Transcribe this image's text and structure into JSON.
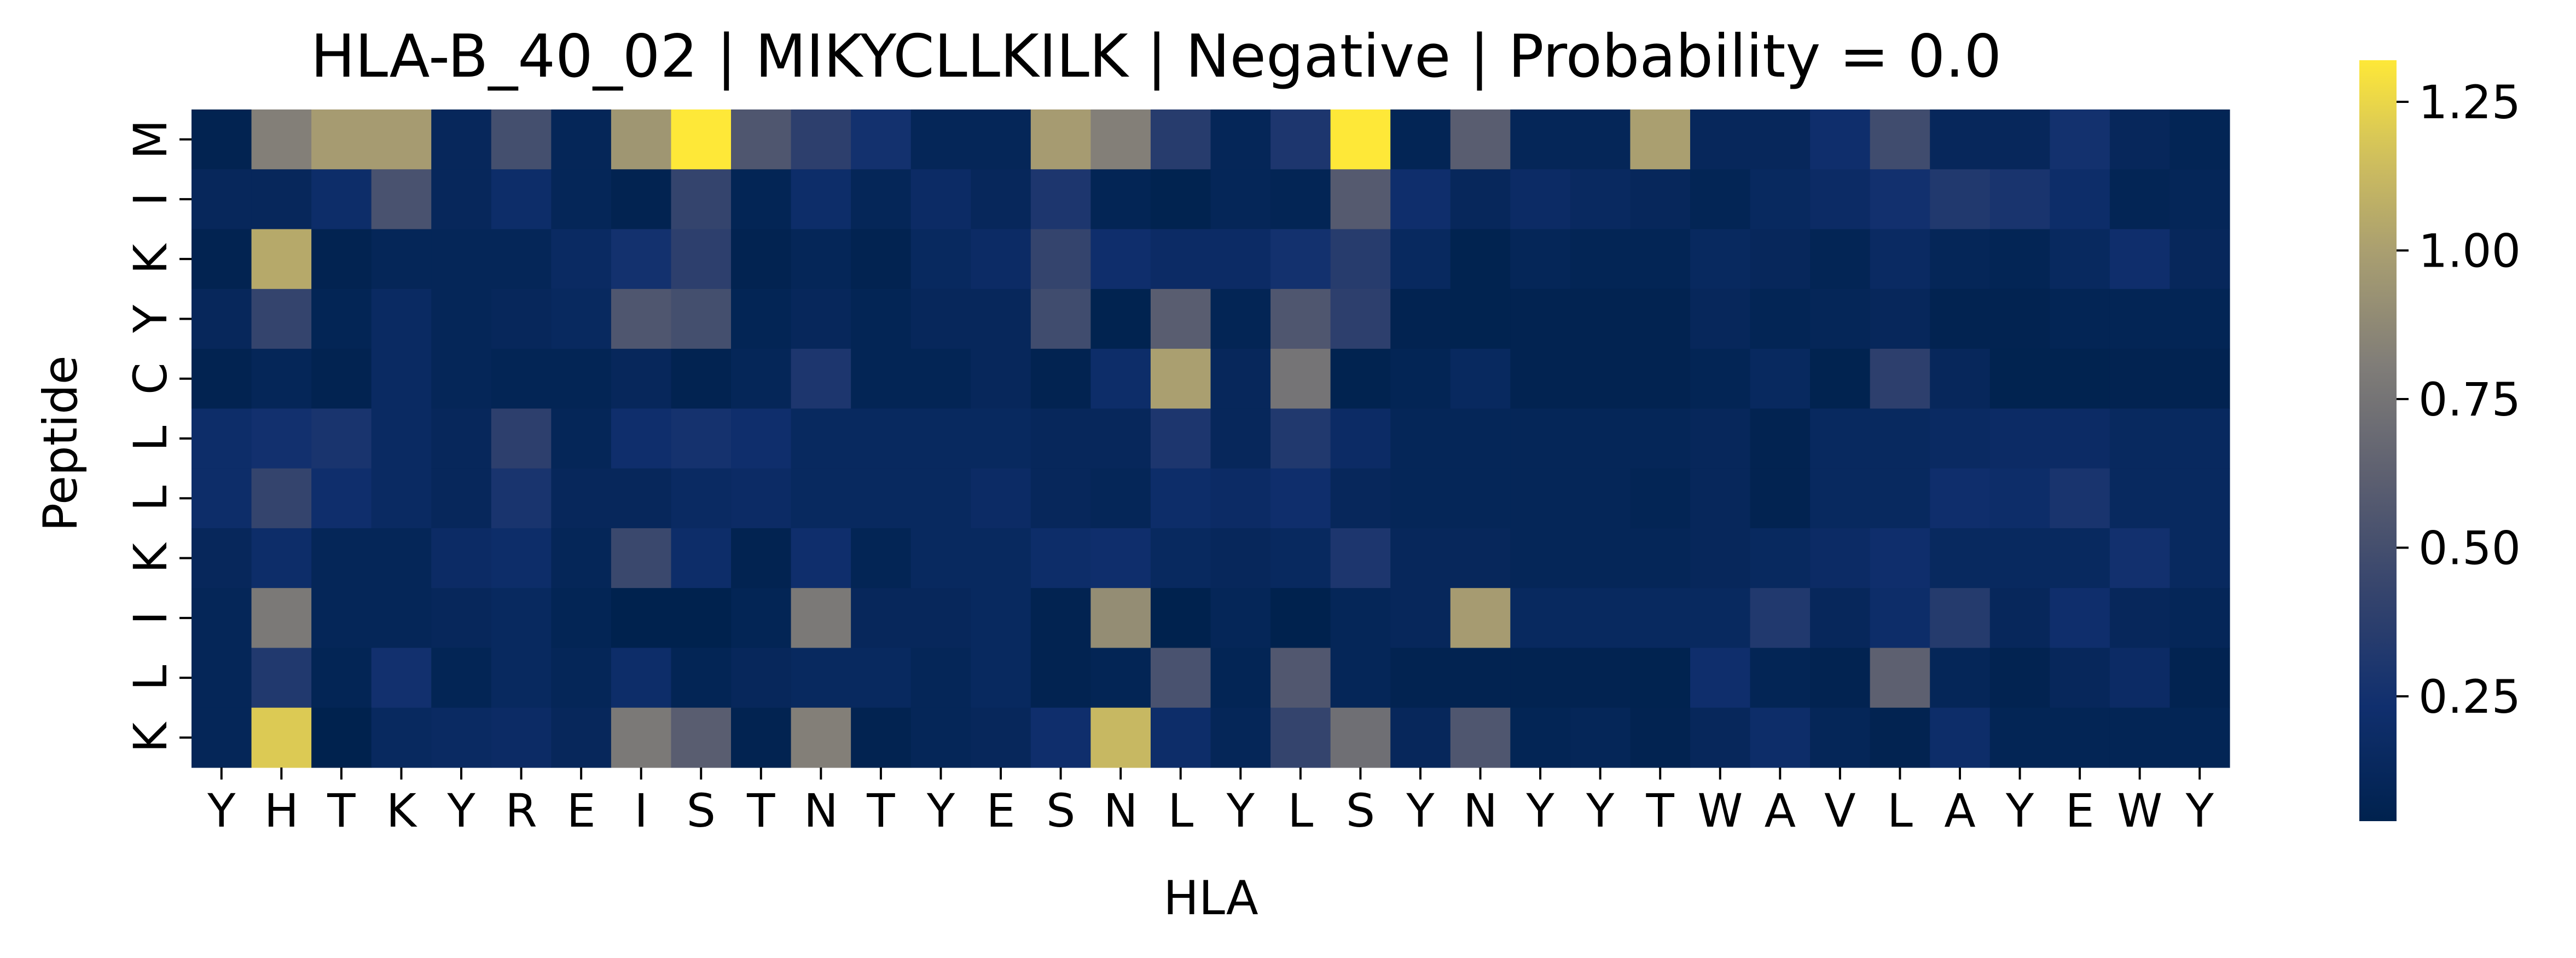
{
  "chart_data": {
    "type": "heatmap",
    "title": "HLA-B_40_02 | MIKYCLLKILK | Negative | Probability = 0.0",
    "xlabel": "HLA",
    "ylabel": "Peptide",
    "x_categories": [
      "Y",
      "H",
      "T",
      "K",
      "Y",
      "R",
      "E",
      "I",
      "S",
      "T",
      "N",
      "T",
      "Y",
      "E",
      "S",
      "N",
      "L",
      "Y",
      "L",
      "S",
      "Y",
      "N",
      "Y",
      "Y",
      "T",
      "W",
      "A",
      "V",
      "L",
      "A",
      "Y",
      "E",
      "W",
      "Y"
    ],
    "y_categories": [
      "M",
      "I",
      "K",
      "Y",
      "C",
      "L",
      "L",
      "K",
      "I",
      "L",
      "K"
    ],
    "y_tick_labels": [
      "M",
      "I",
      "K",
      "Y",
      "C",
      "L",
      "L",
      "K",
      "I",
      "L",
      "K"
    ],
    "colorbar": {
      "min": 0.04,
      "max": 1.32,
      "ticks": [
        0.25,
        0.5,
        0.75,
        1.0,
        1.25
      ],
      "tick_labels": [
        "0.25",
        "0.50",
        "0.75",
        "1.00",
        "1.25"
      ]
    },
    "colormap": "cividis",
    "values": [
      [
        0.06,
        0.82,
        0.98,
        0.98,
        0.12,
        0.5,
        0.1,
        0.95,
        1.32,
        0.55,
        0.38,
        0.25,
        0.1,
        0.1,
        0.98,
        0.82,
        0.35,
        0.1,
        0.3,
        1.32,
        0.08,
        0.6,
        0.1,
        0.1,
        1.0,
        0.12,
        0.12,
        0.22,
        0.48,
        0.12,
        0.12,
        0.25,
        0.12,
        0.08
      ],
      [
        0.12,
        0.12,
        0.2,
        0.52,
        0.12,
        0.2,
        0.1,
        0.06,
        0.42,
        0.08,
        0.2,
        0.1,
        0.18,
        0.12,
        0.3,
        0.08,
        0.05,
        0.1,
        0.08,
        0.58,
        0.22,
        0.12,
        0.18,
        0.15,
        0.12,
        0.08,
        0.14,
        0.18,
        0.24,
        0.32,
        0.28,
        0.2,
        0.08,
        0.1
      ],
      [
        0.06,
        1.05,
        0.06,
        0.1,
        0.1,
        0.1,
        0.16,
        0.25,
        0.38,
        0.06,
        0.1,
        0.06,
        0.14,
        0.18,
        0.42,
        0.22,
        0.18,
        0.18,
        0.25,
        0.35,
        0.14,
        0.05,
        0.1,
        0.08,
        0.08,
        0.14,
        0.12,
        0.08,
        0.16,
        0.1,
        0.08,
        0.14,
        0.22,
        0.12
      ],
      [
        0.12,
        0.42,
        0.08,
        0.16,
        0.1,
        0.12,
        0.14,
        0.55,
        0.5,
        0.08,
        0.12,
        0.08,
        0.12,
        0.12,
        0.48,
        0.05,
        0.6,
        0.08,
        0.55,
        0.38,
        0.06,
        0.05,
        0.06,
        0.06,
        0.06,
        0.12,
        0.08,
        0.1,
        0.12,
        0.06,
        0.06,
        0.08,
        0.08,
        0.08
      ],
      [
        0.06,
        0.1,
        0.06,
        0.16,
        0.1,
        0.08,
        0.08,
        0.12,
        0.06,
        0.1,
        0.3,
        0.08,
        0.08,
        0.12,
        0.06,
        0.2,
        1.0,
        0.12,
        0.75,
        0.05,
        0.08,
        0.14,
        0.06,
        0.06,
        0.06,
        0.08,
        0.14,
        0.05,
        0.38,
        0.12,
        0.05,
        0.05,
        0.06,
        0.06
      ],
      [
        0.2,
        0.24,
        0.28,
        0.16,
        0.12,
        0.38,
        0.1,
        0.22,
        0.26,
        0.22,
        0.14,
        0.14,
        0.14,
        0.14,
        0.12,
        0.12,
        0.3,
        0.12,
        0.32,
        0.18,
        0.1,
        0.1,
        0.1,
        0.1,
        0.1,
        0.12,
        0.06,
        0.14,
        0.14,
        0.16,
        0.18,
        0.18,
        0.14,
        0.14
      ],
      [
        0.2,
        0.42,
        0.22,
        0.16,
        0.12,
        0.28,
        0.12,
        0.12,
        0.16,
        0.18,
        0.14,
        0.14,
        0.14,
        0.18,
        0.12,
        0.1,
        0.2,
        0.18,
        0.22,
        0.12,
        0.1,
        0.1,
        0.1,
        0.1,
        0.08,
        0.12,
        0.06,
        0.14,
        0.14,
        0.22,
        0.2,
        0.28,
        0.14,
        0.14
      ],
      [
        0.12,
        0.2,
        0.1,
        0.1,
        0.18,
        0.2,
        0.1,
        0.45,
        0.2,
        0.06,
        0.22,
        0.08,
        0.14,
        0.14,
        0.2,
        0.22,
        0.14,
        0.12,
        0.14,
        0.3,
        0.12,
        0.12,
        0.1,
        0.1,
        0.1,
        0.12,
        0.14,
        0.18,
        0.22,
        0.14,
        0.14,
        0.14,
        0.24,
        0.14
      ],
      [
        0.1,
        0.78,
        0.1,
        0.1,
        0.12,
        0.14,
        0.08,
        0.04,
        0.04,
        0.08,
        0.78,
        0.12,
        0.12,
        0.14,
        0.06,
        0.9,
        0.04,
        0.1,
        0.04,
        0.1,
        0.12,
        0.98,
        0.14,
        0.14,
        0.14,
        0.14,
        0.32,
        0.12,
        0.2,
        0.34,
        0.12,
        0.22,
        0.12,
        0.1
      ],
      [
        0.1,
        0.32,
        0.08,
        0.24,
        0.08,
        0.14,
        0.1,
        0.2,
        0.08,
        0.12,
        0.14,
        0.14,
        0.1,
        0.14,
        0.06,
        0.08,
        0.52,
        0.08,
        0.56,
        0.1,
        0.06,
        0.06,
        0.06,
        0.06,
        0.05,
        0.22,
        0.08,
        0.06,
        0.62,
        0.1,
        0.06,
        0.12,
        0.18,
        0.06
      ],
      [
        0.1,
        1.2,
        0.04,
        0.14,
        0.16,
        0.18,
        0.12,
        0.78,
        0.6,
        0.06,
        0.82,
        0.06,
        0.1,
        0.12,
        0.22,
        1.12,
        0.2,
        0.1,
        0.42,
        0.72,
        0.12,
        0.55,
        0.08,
        0.1,
        0.06,
        0.12,
        0.2,
        0.1,
        0.06,
        0.2,
        0.08,
        0.08,
        0.08,
        0.08
      ]
    ]
  }
}
